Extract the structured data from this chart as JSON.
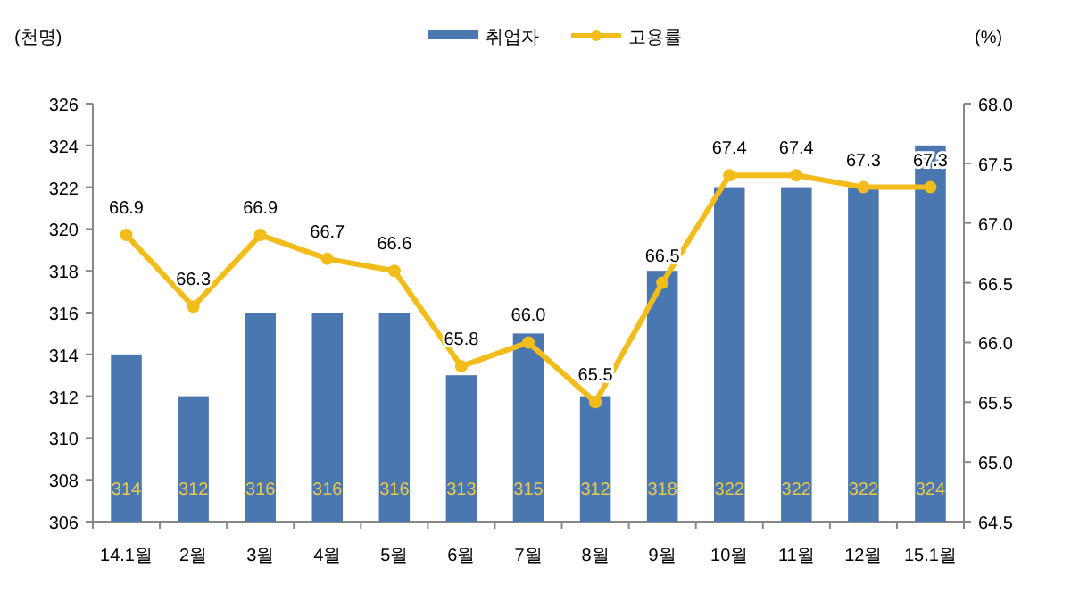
{
  "chart_data": {
    "type": "bar",
    "ylabel": "(천명)",
    "y2label": "(%)",
    "categories": [
      "14.1월",
      "2월",
      "3월",
      "4월",
      "5월",
      "6월",
      "7월",
      "8월",
      "9월",
      "10월",
      "11월",
      "12월",
      "15.1월"
    ],
    "series": [
      {
        "name": "취업자",
        "color": "#4a77b0",
        "values": [
          314,
          312,
          316,
          316,
          316,
          313,
          315,
          312,
          318,
          322,
          322,
          322,
          324
        ]
      },
      {
        "name": "고용률",
        "type": "line",
        "axis": "y2",
        "color": "#f2bd1a",
        "values": [
          66.9,
          66.3,
          66.9,
          66.7,
          66.6,
          65.8,
          66.0,
          65.5,
          66.5,
          67.4,
          67.4,
          67.3,
          67.3
        ],
        "value_labels": [
          "66.9",
          "66.3",
          "66.9",
          "66.7",
          "66.6",
          "65.8",
          "66.0",
          "65.5",
          "66.5",
          "67.4",
          "67.4",
          "67.3",
          "67.3"
        ]
      }
    ],
    "data_labels": true,
    "ylim": [
      306,
      326
    ],
    "yticks": [
      306,
      308,
      310,
      312,
      314,
      316,
      318,
      320,
      322,
      324,
      326
    ],
    "y2lim": [
      64.5,
      68.0
    ],
    "y2ticks": [
      64.5,
      {
        "value": 65,
        "label": "65.0"
      },
      65.5,
      {
        "value": 66,
        "label": "66.0"
      },
      66.5,
      {
        "value": 67,
        "label": "67.0"
      },
      67.5,
      {
        "value": 68,
        "label": "68.0"
      }
    ],
    "legend": "top",
    "marker": "circle",
    "line_style": "solid"
  }
}
